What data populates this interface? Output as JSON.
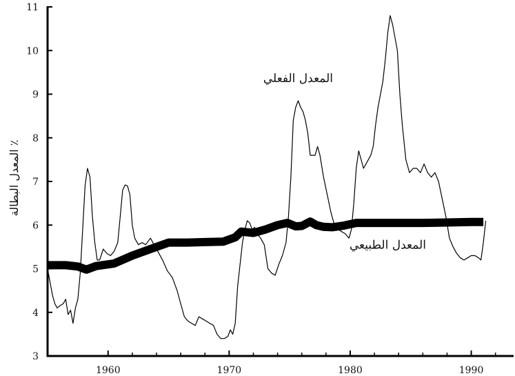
{
  "chart_data": {
    "type": "line",
    "ylabel": "المعدل البطالة ٪",
    "xlim": [
      1955,
      1993.5
    ],
    "ylim": [
      3,
      11
    ],
    "x_ticks": [
      1960,
      1970,
      1980,
      1990
    ],
    "y_ticks": [
      3,
      4,
      5,
      6,
      7,
      8,
      9,
      10,
      11
    ],
    "series": [
      {
        "name": "المعدل الفعلي",
        "style": "thin",
        "color": "#000000",
        "x": [
          1955.0,
          1955.2,
          1955.4,
          1955.6,
          1955.8,
          1956.0,
          1956.3,
          1956.5,
          1956.7,
          1956.9,
          1957.1,
          1957.3,
          1957.5,
          1957.7,
          1957.9,
          1958.1,
          1958.3,
          1958.5,
          1958.7,
          1958.9,
          1959.1,
          1959.3,
          1959.6,
          1959.9,
          1960.2,
          1960.5,
          1960.8,
          1961.0,
          1961.2,
          1961.4,
          1961.6,
          1961.8,
          1962.0,
          1962.2,
          1962.5,
          1962.8,
          1963.1,
          1963.5,
          1963.8,
          1964.1,
          1964.5,
          1964.9,
          1965.3,
          1965.7,
          1966.0,
          1966.3,
          1966.6,
          1966.9,
          1967.2,
          1967.5,
          1967.8,
          1968.1,
          1968.4,
          1968.7,
          1969.0,
          1969.3,
          1969.6,
          1969.9,
          1970.1,
          1970.3,
          1970.5,
          1970.7,
          1970.9,
          1971.1,
          1971.3,
          1971.5,
          1971.7,
          1971.9,
          1972.1,
          1972.3,
          1972.6,
          1972.9,
          1973.2,
          1973.5,
          1973.8,
          1974.1,
          1974.4,
          1974.7,
          1974.9,
          1975.1,
          1975.3,
          1975.5,
          1975.7,
          1975.9,
          1976.1,
          1976.3,
          1976.5,
          1976.7,
          1976.9,
          1977.1,
          1977.3,
          1977.5,
          1977.8,
          1978.1,
          1978.4,
          1978.7,
          1979.0,
          1979.3,
          1979.6,
          1979.9,
          1980.1,
          1980.3,
          1980.5,
          1980.7,
          1980.9,
          1981.1,
          1981.3,
          1981.5,
          1981.7,
          1981.9,
          1982.1,
          1982.3,
          1982.5,
          1982.7,
          1982.9,
          1983.1,
          1983.3,
          1983.5,
          1983.7,
          1983.9,
          1984.1,
          1984.3,
          1984.6,
          1984.9,
          1985.2,
          1985.5,
          1985.8,
          1986.1,
          1986.4,
          1986.7,
          1987.0,
          1987.3,
          1987.6,
          1987.9,
          1988.2,
          1988.5,
          1988.8,
          1989.1,
          1989.4,
          1989.7,
          1990.0,
          1990.3,
          1990.6,
          1990.8,
          1991.0,
          1991.2
        ],
        "y": [
          5.0,
          4.7,
          4.4,
          4.2,
          4.1,
          4.15,
          4.2,
          4.3,
          3.95,
          4.05,
          3.75,
          4.1,
          4.3,
          4.9,
          5.9,
          6.9,
          7.3,
          7.1,
          6.2,
          5.6,
          5.2,
          5.2,
          5.45,
          5.35,
          5.3,
          5.4,
          5.6,
          6.2,
          6.8,
          6.92,
          6.9,
          6.7,
          6.0,
          5.7,
          5.55,
          5.6,
          5.55,
          5.7,
          5.55,
          5.4,
          5.2,
          4.95,
          4.8,
          4.5,
          4.2,
          3.9,
          3.8,
          3.75,
          3.7,
          3.9,
          3.85,
          3.8,
          3.75,
          3.7,
          3.5,
          3.4,
          3.4,
          3.45,
          3.6,
          3.5,
          3.75,
          4.6,
          5.1,
          5.6,
          5.9,
          6.1,
          6.05,
          5.9,
          5.95,
          5.8,
          5.7,
          5.55,
          5.0,
          4.9,
          4.85,
          5.1,
          5.3,
          5.6,
          6.2,
          7.1,
          8.4,
          8.7,
          8.85,
          8.7,
          8.6,
          8.4,
          8.1,
          7.6,
          7.6,
          7.6,
          7.8,
          7.6,
          7.1,
          6.7,
          6.3,
          6.0,
          5.9,
          5.85,
          5.8,
          5.7,
          5.9,
          6.5,
          7.3,
          7.7,
          7.5,
          7.3,
          7.4,
          7.5,
          7.6,
          7.8,
          8.3,
          8.7,
          9.0,
          9.3,
          9.8,
          10.4,
          10.8,
          10.6,
          10.3,
          10.0,
          9.0,
          8.3,
          7.5,
          7.2,
          7.3,
          7.3,
          7.2,
          7.4,
          7.2,
          7.1,
          7.2,
          7.0,
          6.6,
          6.2,
          5.7,
          5.5,
          5.35,
          5.25,
          5.2,
          5.25,
          5.3,
          5.3,
          5.25,
          5.2,
          5.6,
          6.1
        ]
      },
      {
        "name": "المعدل الطبيعي",
        "style": "thick",
        "color": "#000000",
        "x": [
          1955.0,
          1956.5,
          1957.5,
          1958.2,
          1959.0,
          1960.5,
          1962.0,
          1963.5,
          1965.0,
          1966.5,
          1968.0,
          1969.5,
          1970.5,
          1971.0,
          1972.0,
          1973.0,
          1974.0,
          1974.8,
          1975.5,
          1976.0,
          1976.7,
          1977.2,
          1977.8,
          1978.5,
          1979.5,
          1980.5,
          1982.0,
          1984.0,
          1986.0,
          1988.0,
          1990.0,
          1991.0
        ],
        "y": [
          5.08,
          5.08,
          5.05,
          4.98,
          5.06,
          5.12,
          5.3,
          5.45,
          5.6,
          5.6,
          5.61,
          5.62,
          5.72,
          5.85,
          5.82,
          5.9,
          6.0,
          6.05,
          5.97,
          5.98,
          6.08,
          6.0,
          5.96,
          5.95,
          5.99,
          6.05,
          6.05,
          6.05,
          6.05,
          6.06,
          6.07,
          6.07
        ]
      }
    ],
    "annotations": [
      {
        "text": "المعدل الفعلي",
        "x": 1975.7,
        "y": 9.28,
        "anchor": "middle"
      },
      {
        "text": "المعدل الطبيعي",
        "x": 1983.1,
        "y": 5.46,
        "anchor": "middle"
      }
    ],
    "grid": false
  }
}
